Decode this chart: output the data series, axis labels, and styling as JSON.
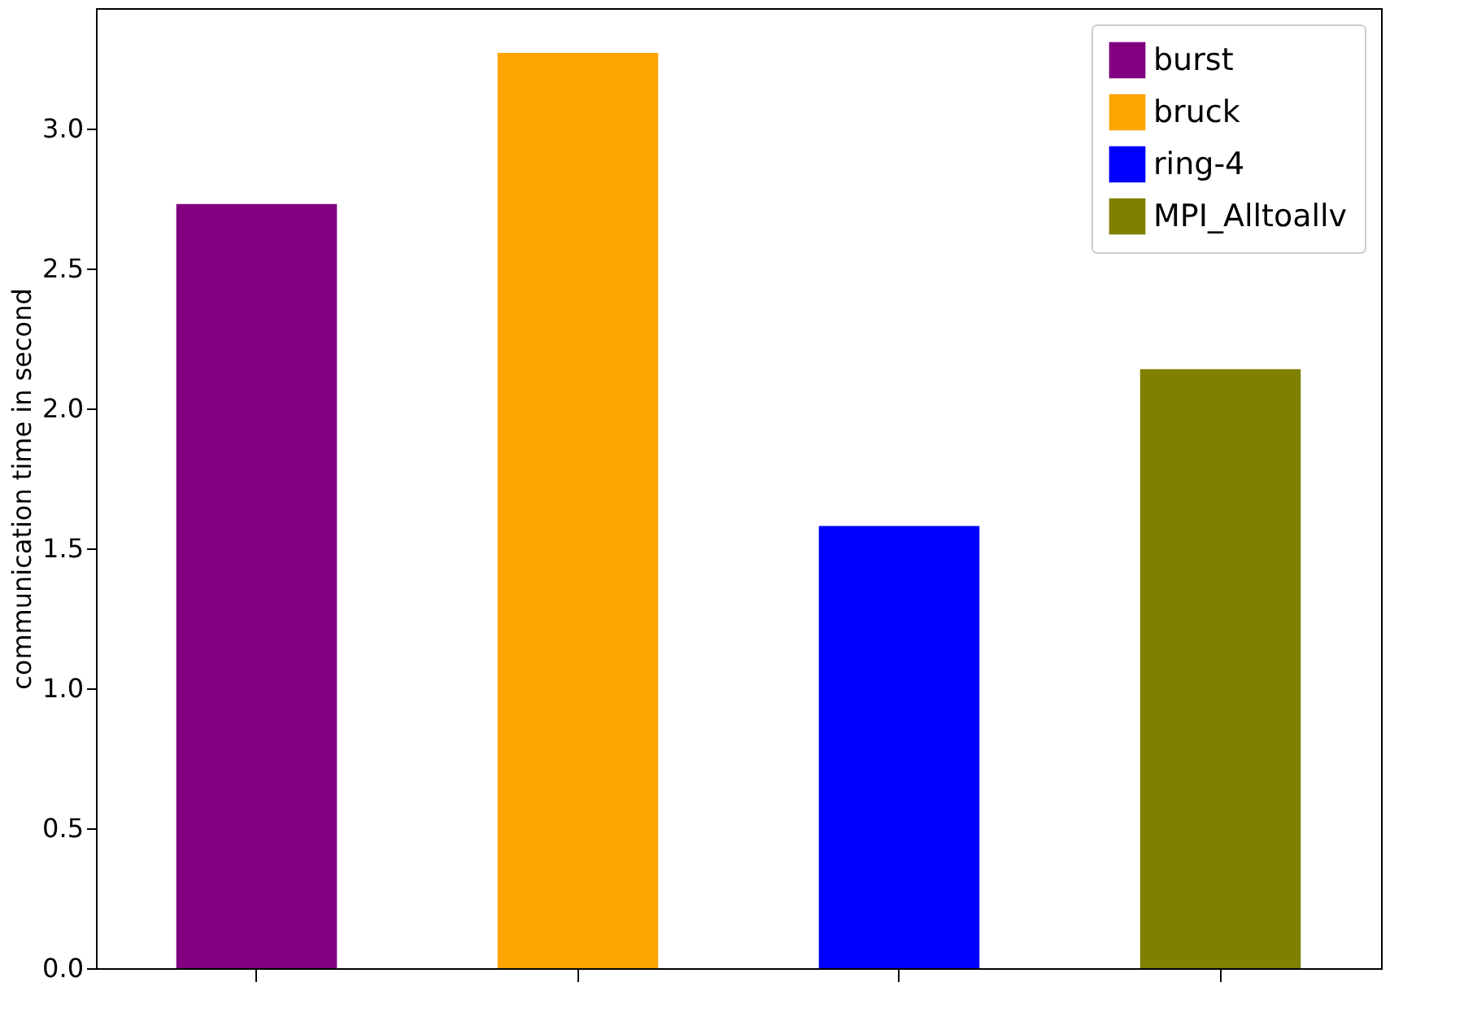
{
  "chart_data": {
    "type": "bar",
    "ylabel": "communication time in second",
    "categories": [
      null,
      null,
      null,
      null
    ],
    "stacked": true,
    "series": [
      {
        "name": "burst",
        "color": "#800080",
        "values": [
          2.73,
          null,
          null,
          null
        ]
      },
      {
        "name": "bruck",
        "color": "#ffa500",
        "values": [
          null,
          3.27,
          null,
          null
        ]
      },
      {
        "name": "ring-4",
        "color": "#0000ff",
        "values": [
          null,
          null,
          1.58,
          null
        ]
      },
      {
        "name": "MPI_Alltoallv",
        "color": "#808000",
        "values": [
          null,
          null,
          null,
          2.14
        ]
      }
    ],
    "ylim": [
      0,
      3.43
    ],
    "yticks": [
      {
        "value": 0,
        "label": "0.0"
      },
      {
        "value": 0.5,
        "label": "0.5"
      },
      {
        "value": 1,
        "label": "1.0"
      },
      {
        "value": 1.5,
        "label": "1.5"
      },
      {
        "value": 2,
        "label": "2.0"
      },
      {
        "value": 2.5,
        "label": "2.5"
      },
      {
        "value": 3,
        "label": "3.0"
      }
    ],
    "grid": false,
    "legend": "top right",
    "tick_labels": "y"
  }
}
